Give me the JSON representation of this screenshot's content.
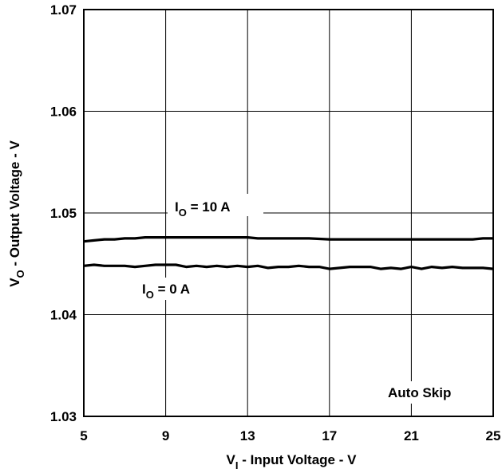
{
  "chart_data": {
    "type": "line",
    "xlabel": {
      "main": "V",
      "sub": "I",
      "rest": " - Input Voltage - V"
    },
    "ylabel": {
      "main": "V",
      "sub": "O",
      "rest": " - Output Voltage - V"
    },
    "xlim": [
      5,
      25
    ],
    "ylim": [
      1.03,
      1.07
    ],
    "xticks": [
      "5",
      "9",
      "13",
      "17",
      "21",
      "25"
    ],
    "yticks": [
      "1.03",
      "1.04",
      "1.05",
      "1.06",
      "1.07"
    ],
    "grid": true,
    "series": [
      {
        "name": "I_O = 10 A",
        "x": [
          5,
          5.5,
          6,
          6.5,
          7,
          7.5,
          8,
          8.5,
          9,
          10,
          11,
          12,
          13,
          13.5,
          14,
          15,
          16,
          17,
          18,
          19,
          20,
          21,
          22,
          23,
          24,
          24.5,
          25
        ],
        "y": [
          1.0472,
          1.0473,
          1.0474,
          1.0474,
          1.0475,
          1.0475,
          1.0476,
          1.0476,
          1.0476,
          1.0476,
          1.0476,
          1.0476,
          1.0476,
          1.0475,
          1.0475,
          1.0475,
          1.0475,
          1.0474,
          1.0474,
          1.0474,
          1.0474,
          1.0474,
          1.0474,
          1.0474,
          1.0474,
          1.0475,
          1.0475
        ]
      },
      {
        "name": "I_O = 0 A",
        "x": [
          5,
          5.5,
          6,
          7,
          7.5,
          8,
          8.5,
          9,
          9.5,
          10,
          10.5,
          11,
          11.5,
          12,
          12.5,
          13,
          13.5,
          14,
          14.5,
          15,
          15.5,
          16,
          16.5,
          17,
          17.5,
          18,
          18.5,
          19,
          19.5,
          20,
          20.5,
          21,
          21.5,
          22,
          22.5,
          23,
          23.5,
          24,
          24.5,
          25
        ],
        "y": [
          1.0448,
          1.0449,
          1.0448,
          1.0448,
          1.0447,
          1.0448,
          1.0449,
          1.0449,
          1.0449,
          1.0447,
          1.0448,
          1.0447,
          1.0448,
          1.0447,
          1.0448,
          1.0447,
          1.0448,
          1.0446,
          1.0447,
          1.0447,
          1.0448,
          1.0447,
          1.0447,
          1.0445,
          1.0446,
          1.0447,
          1.0447,
          1.0447,
          1.0445,
          1.0446,
          1.0445,
          1.0447,
          1.0445,
          1.0447,
          1.0446,
          1.0447,
          1.0446,
          1.0446,
          1.0446,
          1.0445
        ]
      }
    ],
    "annotations": {
      "io10": {
        "main": "I",
        "sub": "O",
        "rest": " = 10 A"
      },
      "io0": {
        "main": "I",
        "sub": "O",
        "rest": " = 0 A"
      },
      "mode": "Auto Skip"
    }
  }
}
